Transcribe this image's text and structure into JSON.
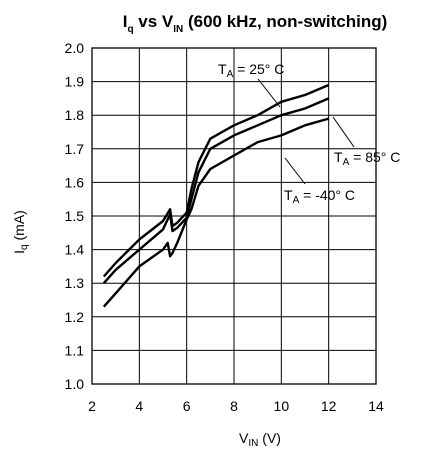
{
  "chart_data": {
    "type": "line",
    "title": {
      "main": "I",
      "main_sub": "q",
      "mid": " vs V",
      "mid_sub": "IN",
      "rest": " (600 kHz, non-switching)"
    },
    "xlabel": {
      "main": "V",
      "sub": "IN",
      "rest": " (V)"
    },
    "ylabel": {
      "main": "I",
      "sub": "q",
      "rest": " (mA)"
    },
    "xlim": [
      2,
      14
    ],
    "ylim": [
      1.0,
      2.0
    ],
    "xticks": [
      "2",
      "4",
      "6",
      "8",
      "10",
      "12",
      "14"
    ],
    "yticks": [
      "1.0",
      "1.1",
      "1.2",
      "1.3",
      "1.4",
      "1.5",
      "1.6",
      "1.7",
      "1.8",
      "1.9",
      "2.0"
    ],
    "grid": true,
    "legend": "annotations",
    "series": [
      {
        "name": "25",
        "x": [
          2.5,
          3,
          4,
          5,
          5.3,
          5.4,
          5.6,
          6,
          6.2,
          6.5,
          7,
          8,
          9,
          10,
          11,
          12
        ],
        "y": [
          1.32,
          1.36,
          1.43,
          1.485,
          1.52,
          1.47,
          1.48,
          1.51,
          1.58,
          1.66,
          1.73,
          1.77,
          1.8,
          1.84,
          1.86,
          1.89
        ]
      },
      {
        "name": "85",
        "x": [
          2.5,
          3,
          4,
          5,
          5.3,
          5.4,
          5.6,
          6,
          6.2,
          6.5,
          7,
          8,
          9,
          10,
          11,
          12
        ],
        "y": [
          1.3,
          1.34,
          1.4,
          1.46,
          1.505,
          1.455,
          1.465,
          1.495,
          1.55,
          1.63,
          1.7,
          1.74,
          1.77,
          1.8,
          1.82,
          1.85
        ]
      },
      {
        "name": "-40",
        "x": [
          2.5,
          3,
          4,
          5,
          5.2,
          5.3,
          5.4,
          5.6,
          6,
          6.2,
          6.5,
          7,
          8,
          9,
          10,
          11,
          12
        ],
        "y": [
          1.23,
          1.27,
          1.35,
          1.4,
          1.42,
          1.38,
          1.39,
          1.42,
          1.49,
          1.52,
          1.59,
          1.64,
          1.68,
          1.72,
          1.74,
          1.77,
          1.79
        ]
      }
    ],
    "annotations": [
      {
        "label_main": "T",
        "label_sub": "A",
        "label_rest": " = 25° C",
        "series": "25"
      },
      {
        "label_main": "T",
        "label_sub": "A",
        "label_rest": " = 85° C",
        "series": "85"
      },
      {
        "label_main": "T",
        "label_sub": "A",
        "label_rest": " = -40° C",
        "series": "-40"
      }
    ],
    "line_color": "#000000"
  }
}
